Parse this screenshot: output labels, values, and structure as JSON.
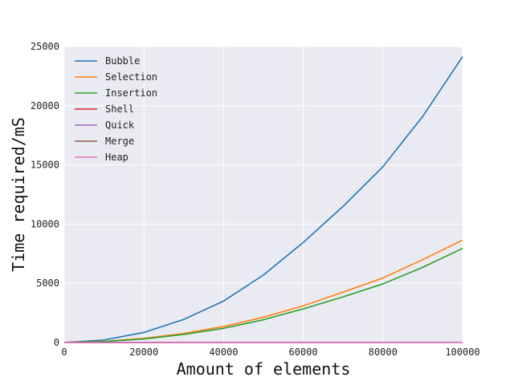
{
  "chart_data": {
    "type": "line",
    "title": "",
    "xlabel": "Amount of elements",
    "ylabel": "Time required/mS",
    "xlim": [
      0,
      100000
    ],
    "ylim": [
      0,
      25000
    ],
    "xticks": [
      0,
      20000,
      40000,
      60000,
      80000,
      100000
    ],
    "yticks": [
      0,
      5000,
      10000,
      15000,
      20000,
      25000
    ],
    "xtick_labels": [
      "0",
      "20000",
      "40000",
      "60000",
      "80000",
      "100000"
    ],
    "ytick_labels": [
      "0",
      "5000",
      "10000",
      "15000",
      "20000",
      "25000"
    ],
    "grid": true,
    "legend_position": "upper-left",
    "x": [
      0,
      10000,
      20000,
      30000,
      40000,
      50000,
      60000,
      70000,
      80000,
      90000,
      100000
    ],
    "series": [
      {
        "name": "Bubble",
        "color": "#1f77b4",
        "values": [
          0,
          210,
          850,
          1950,
          3500,
          5700,
          8450,
          11500,
          14850,
          19100,
          24150
        ]
      },
      {
        "name": "Selection",
        "color": "#ff7f0e",
        "values": [
          0,
          90,
          350,
          760,
          1350,
          2130,
          3100,
          4250,
          5450,
          7000,
          8650
        ]
      },
      {
        "name": "Insertion",
        "color": "#2ca02c",
        "values": [
          0,
          80,
          300,
          680,
          1200,
          1920,
          2840,
          3850,
          4950,
          6350,
          7950
        ]
      },
      {
        "name": "Shell",
        "color": "#d62728",
        "values": [
          0,
          1,
          2,
          3,
          4,
          5,
          6,
          7,
          8,
          9,
          10
        ]
      },
      {
        "name": "Quick",
        "color": "#9467bd",
        "values": [
          0,
          1,
          2,
          3,
          4,
          5,
          6,
          7,
          8,
          9,
          10
        ]
      },
      {
        "name": "Merge",
        "color": "#8c564b",
        "values": [
          0,
          1,
          2,
          3,
          4,
          5,
          6,
          7,
          8,
          9,
          10
        ]
      },
      {
        "name": "Heap",
        "color": "#e377c2",
        "values": [
          0,
          1,
          2,
          3,
          4,
          5,
          6,
          7,
          8,
          9,
          10
        ]
      }
    ]
  },
  "style": {
    "plot_background": "#eaeaf2",
    "grid_color": "#ffffff"
  }
}
